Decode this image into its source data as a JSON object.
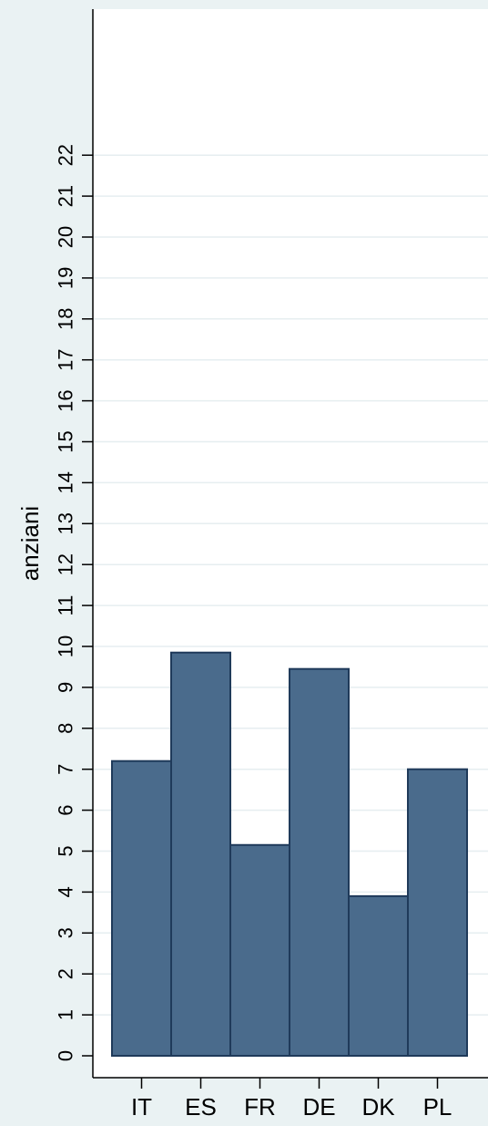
{
  "chart_data": {
    "type": "bar",
    "ylabel": "anziani",
    "xlabel": "",
    "categories": [
      "IT",
      "ES",
      "FR",
      "DE",
      "DK",
      "PL"
    ],
    "values": [
      7.2,
      9.85,
      5.15,
      9.45,
      3.9,
      7.0
    ],
    "ylim": [
      0,
      22
    ],
    "yticks": [
      0,
      1,
      2,
      3,
      4,
      5,
      6,
      7,
      8,
      9,
      10,
      11,
      12,
      13,
      14,
      15,
      16,
      17,
      18,
      19,
      20,
      21,
      22
    ],
    "grid": true,
    "colors": {
      "background": "#eaf2f3",
      "plot_area": "#ffffff",
      "bar_fill": "#4a6b8c",
      "bar_edge": "#1f3a5a",
      "grid": "#e6eef0"
    }
  }
}
